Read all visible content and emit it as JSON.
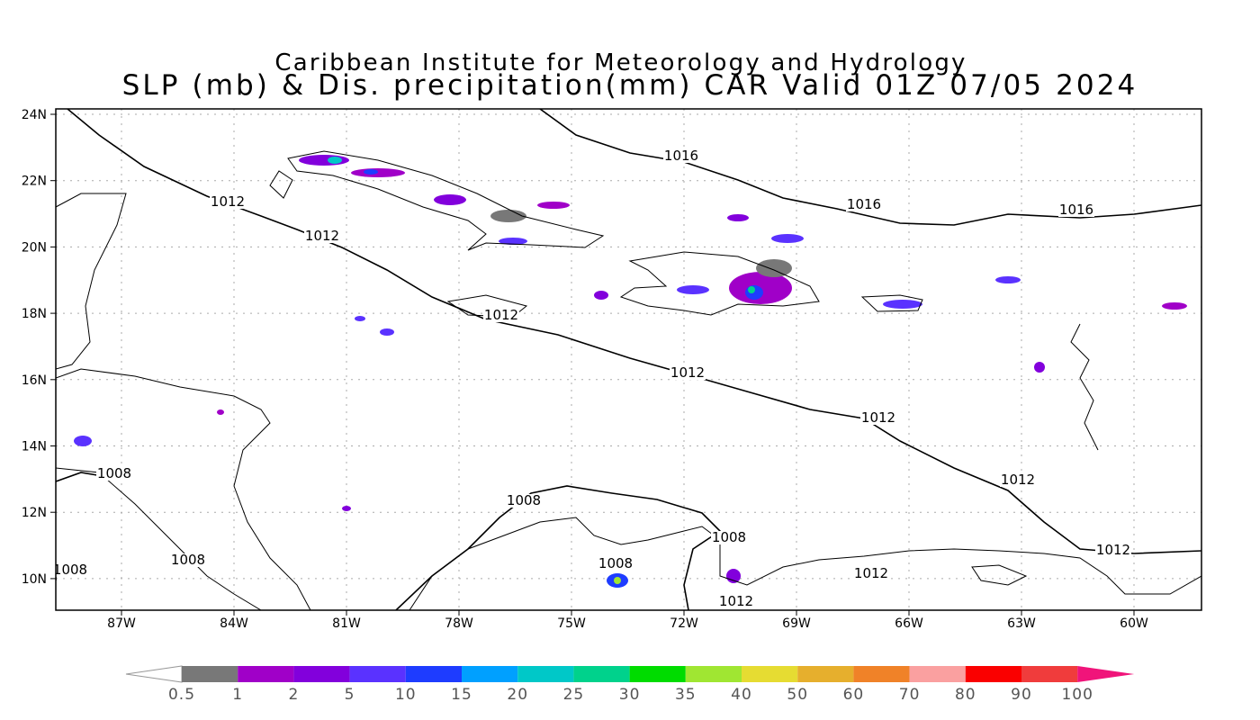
{
  "header": {
    "title_line1": "Caribbean Institute for Meteorology and Hydrology",
    "title_line2": "SLP (mb) & Dis. precipitation(mm) CAR Valid 01Z 07/05 2024"
  },
  "map": {
    "lon_labels": [
      "87W",
      "84W",
      "81W",
      "78W",
      "75W",
      "72W",
      "69W",
      "66W",
      "63W",
      "60W"
    ],
    "lat_labels": [
      "24N",
      "22N",
      "20N",
      "18N",
      "16N",
      "14N",
      "12N",
      "10N"
    ],
    "contour_labels": [
      "1016",
      "1016",
      "1016",
      "1012",
      "1012",
      "1012",
      "1012",
      "1012",
      "1012",
      "1012",
      "1012",
      "1012",
      "1008",
      "1008",
      "1008",
      "1008",
      "1008",
      "1008"
    ]
  },
  "colorbar": {
    "labels": [
      "0.5",
      "1",
      "2",
      "5",
      "10",
      "15",
      "20",
      "25",
      "30",
      "35",
      "40",
      "50",
      "60",
      "70",
      "80",
      "90",
      "100"
    ],
    "colors": [
      "#787878",
      "#a000c8",
      "#8200dc",
      "#5a32ff",
      "#1e3cff",
      "#00a0ff",
      "#00c8c8",
      "#00d28c",
      "#00dc00",
      "#a0e632",
      "#e6dc32",
      "#e6af2d",
      "#f08228",
      "#faa0a0",
      "#fa0000",
      "#f03c3c",
      "#f0147a"
    ]
  }
}
